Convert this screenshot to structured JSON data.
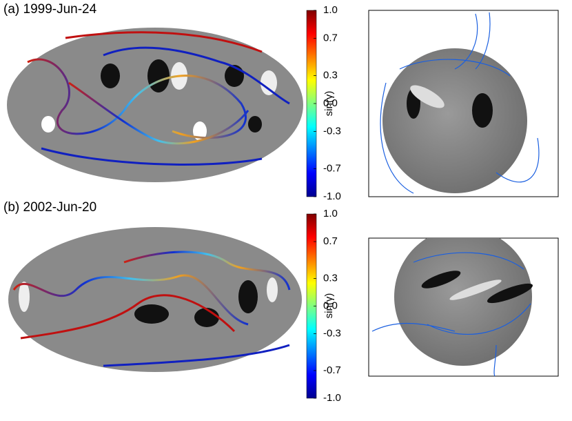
{
  "panels": [
    {
      "label": "(a) 1999-Jun-24",
      "colorbar": {
        "label": "sin(γ)",
        "lim": [
          -1,
          1
        ],
        "ticks": [
          {
            "value": 1,
            "label": "1.0"
          },
          0.7,
          0.3,
          {
            "value": 0,
            "label": "0.0"
          },
          -0.3,
          -0.7,
          {
            "value": -1,
            "label": "-1.0"
          }
        ]
      }
    },
    {
      "label": "(b) 2002-Jun-20",
      "colorbar": {
        "label": "sin(γ)",
        "lim": [
          -1,
          1
        ],
        "ticks": [
          {
            "value": 1,
            "label": "1.0"
          },
          0.7,
          0.3,
          {
            "value": 0,
            "label": "0.0"
          },
          -0.3,
          -0.7,
          {
            "value": -1,
            "label": "-1.0"
          }
        ]
      }
    }
  ]
}
